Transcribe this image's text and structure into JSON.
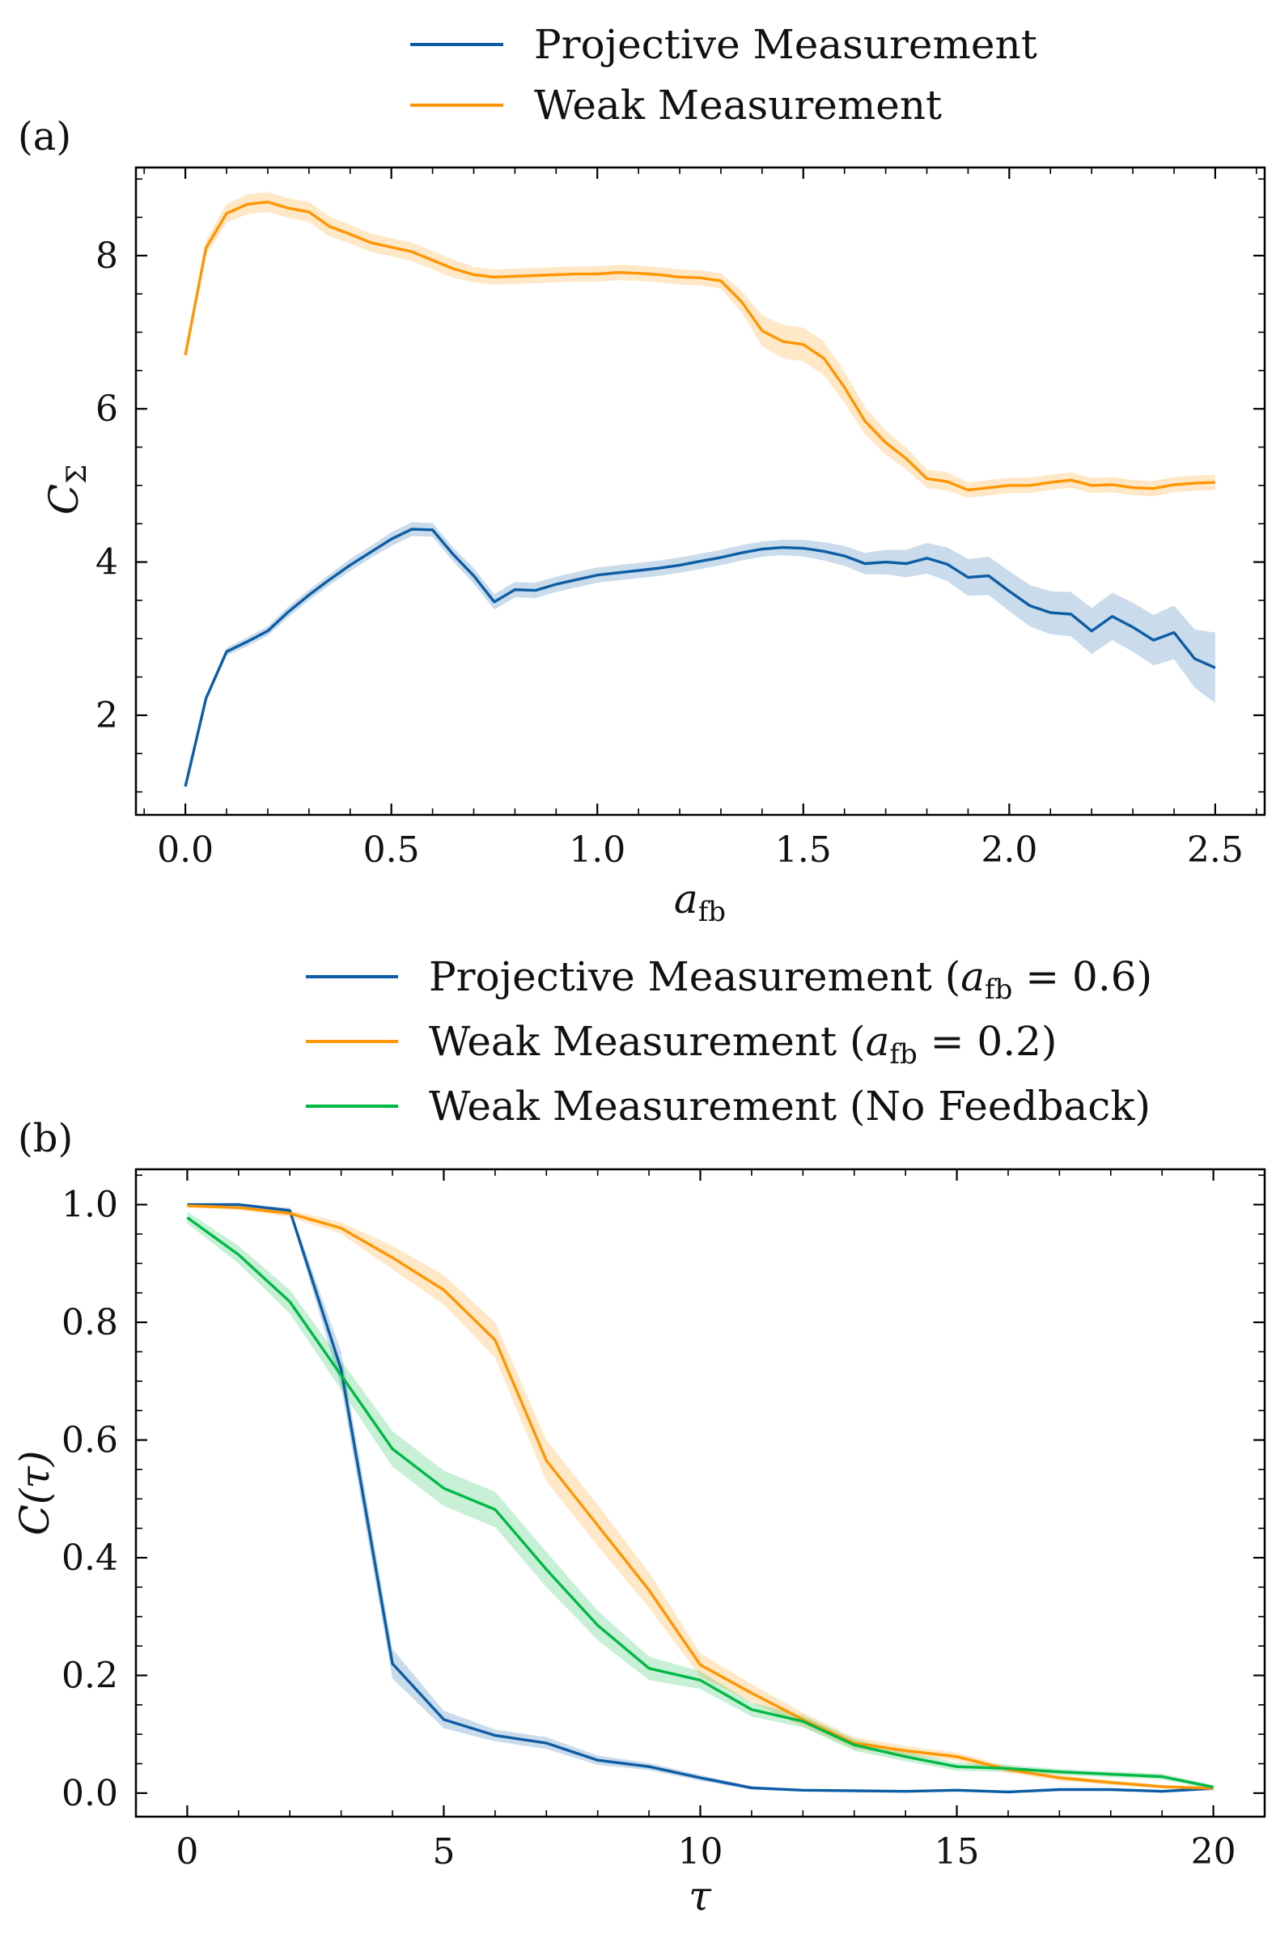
{
  "chart_data": [
    {
      "type": "line",
      "panel_label": "(a)",
      "xlabel": "a_fb",
      "xlabel_main": "a",
      "xlabel_sub": "fb",
      "ylabel": "C_Σ",
      "ylabel_main": "C",
      "ylabel_sub": "Σ",
      "xlim": [
        -0.12,
        2.62
      ],
      "ylim": [
        0.7,
        9.15
      ],
      "xticks": [
        0.0,
        0.5,
        1.0,
        1.5,
        2.0,
        2.5
      ],
      "xtick_labels": [
        "0.0",
        "0.5",
        "1.0",
        "1.5",
        "2.0",
        "2.5"
      ],
      "yticks": [
        2,
        4,
        6,
        8
      ],
      "ytick_labels": [
        "2",
        "4",
        "6",
        "8"
      ],
      "legend_position": "top-center, above plot",
      "series": [
        {
          "name": "Projective Measurement",
          "color": "#0C5DA5",
          "x": [
            0.0,
            0.05,
            0.1,
            0.15,
            0.2,
            0.25,
            0.3,
            0.35,
            0.4,
            0.45,
            0.5,
            0.55,
            0.6,
            0.65,
            0.7,
            0.75,
            0.8,
            0.85,
            0.9,
            0.95,
            1.0,
            1.05,
            1.1,
            1.15,
            1.2,
            1.25,
            1.3,
            1.35,
            1.4,
            1.45,
            1.5,
            1.55,
            1.6,
            1.65,
            1.7,
            1.75,
            1.8,
            1.85,
            1.9,
            1.95,
            2.0,
            2.05,
            2.1,
            2.15,
            2.2,
            2.25,
            2.3,
            2.35,
            2.4,
            2.45,
            2.5
          ],
          "values": [
            1.07,
            2.22,
            2.83,
            2.96,
            3.1,
            3.35,
            3.57,
            3.77,
            3.96,
            4.13,
            4.3,
            4.43,
            4.42,
            4.1,
            3.82,
            3.48,
            3.64,
            3.63,
            3.71,
            3.77,
            3.83,
            3.86,
            3.89,
            3.92,
            3.96,
            4.01,
            4.06,
            4.12,
            4.17,
            4.19,
            4.18,
            4.14,
            4.08,
            3.98,
            4.0,
            3.98,
            4.05,
            3.97,
            3.8,
            3.82,
            3.62,
            3.43,
            3.34,
            3.32,
            3.1,
            3.29,
            3.15,
            2.98,
            3.08,
            2.74,
            2.62
          ],
          "err": [
            0.03,
            0.04,
            0.05,
            0.06,
            0.06,
            0.07,
            0.07,
            0.07,
            0.08,
            0.08,
            0.09,
            0.09,
            0.09,
            0.09,
            0.1,
            0.1,
            0.1,
            0.1,
            0.1,
            0.1,
            0.1,
            0.1,
            0.1,
            0.1,
            0.1,
            0.1,
            0.1,
            0.1,
            0.1,
            0.1,
            0.11,
            0.12,
            0.13,
            0.14,
            0.16,
            0.18,
            0.2,
            0.22,
            0.24,
            0.25,
            0.26,
            0.27,
            0.28,
            0.29,
            0.3,
            0.31,
            0.32,
            0.33,
            0.35,
            0.38,
            0.46
          ]
        },
        {
          "name": "Weak Measurement",
          "color": "#FF9500",
          "x": [
            0.0,
            0.05,
            0.1,
            0.15,
            0.2,
            0.25,
            0.3,
            0.35,
            0.4,
            0.45,
            0.5,
            0.55,
            0.6,
            0.65,
            0.7,
            0.75,
            0.8,
            0.85,
            0.9,
            0.95,
            1.0,
            1.05,
            1.1,
            1.15,
            1.2,
            1.25,
            1.3,
            1.35,
            1.4,
            1.45,
            1.5,
            1.55,
            1.6,
            1.65,
            1.7,
            1.75,
            1.8,
            1.85,
            1.9,
            1.95,
            2.0,
            2.05,
            2.1,
            2.15,
            2.2,
            2.25,
            2.3,
            2.35,
            2.4,
            2.45,
            2.5
          ],
          "values": [
            6.7,
            8.1,
            8.55,
            8.67,
            8.7,
            8.62,
            8.57,
            8.38,
            8.28,
            8.17,
            8.11,
            8.05,
            7.94,
            7.83,
            7.75,
            7.72,
            7.73,
            7.74,
            7.75,
            7.76,
            7.76,
            7.78,
            7.77,
            7.75,
            7.72,
            7.71,
            7.67,
            7.4,
            7.02,
            6.88,
            6.84,
            6.66,
            6.28,
            5.84,
            5.56,
            5.35,
            5.09,
            5.05,
            4.94,
            4.97,
            5.0,
            5.0,
            5.04,
            5.07,
            5.0,
            5.01,
            4.97,
            4.96,
            5.01,
            5.03,
            5.04
          ],
          "err": [
            0.05,
            0.1,
            0.12,
            0.13,
            0.13,
            0.13,
            0.13,
            0.13,
            0.12,
            0.12,
            0.12,
            0.12,
            0.12,
            0.12,
            0.1,
            0.1,
            0.1,
            0.1,
            0.1,
            0.1,
            0.1,
            0.1,
            0.1,
            0.1,
            0.1,
            0.1,
            0.1,
            0.14,
            0.2,
            0.22,
            0.22,
            0.22,
            0.2,
            0.18,
            0.16,
            0.14,
            0.12,
            0.12,
            0.1,
            0.1,
            0.1,
            0.1,
            0.1,
            0.1,
            0.1,
            0.1,
            0.1,
            0.1,
            0.1,
            0.1,
            0.1
          ]
        }
      ]
    },
    {
      "type": "line",
      "panel_label": "(b)",
      "xlabel": "τ",
      "ylabel": "C(τ)",
      "xlim": [
        -1.0,
        21.0
      ],
      "ylim": [
        -0.04,
        1.06
      ],
      "xticks": [
        0,
        5,
        10,
        15,
        20
      ],
      "xtick_labels": [
        "0",
        "5",
        "10",
        "15",
        "20"
      ],
      "yticks": [
        0.0,
        0.2,
        0.4,
        0.6,
        0.8,
        1.0
      ],
      "ytick_labels": [
        "0.0",
        "0.2",
        "0.4",
        "0.6",
        "0.8",
        "1.0"
      ],
      "legend_position": "top-center, above plot",
      "legend_afb_sub": "fb",
      "legend_afb_main": "a",
      "series": [
        {
          "name": "Projective Measurement (a_fb = 0.6)",
          "legend_prefix": "Projective Measurement (",
          "legend_suffix": " = 0.6)",
          "color": "#0C5DA5",
          "x": [
            0,
            1,
            2,
            3,
            4,
            5,
            6,
            7,
            8,
            9,
            10,
            11,
            12,
            13,
            14,
            15,
            16,
            17,
            18,
            19,
            20
          ],
          "values": [
            1.0,
            1.0,
            0.99,
            0.72,
            0.22,
            0.125,
            0.098,
            0.085,
            0.056,
            0.045,
            0.026,
            0.009,
            0.005,
            0.004,
            0.003,
            0.005,
            0.002,
            0.006,
            0.006,
            0.003,
            0.008
          ],
          "err": [
            0.0,
            0.0,
            0.005,
            0.03,
            0.025,
            0.015,
            0.01,
            0.01,
            0.008,
            0.006,
            0.005,
            0.003,
            0.002,
            0.002,
            0.002,
            0.002,
            0.002,
            0.002,
            0.002,
            0.002,
            0.003
          ]
        },
        {
          "name": "Weak Measurement (a_fb = 0.2)",
          "legend_prefix": "Weak Measurement (",
          "legend_suffix": " = 0.2)",
          "color": "#FF9500",
          "x": [
            0,
            1,
            2,
            3,
            4,
            5,
            6,
            7,
            8,
            9,
            10,
            11,
            12,
            13,
            14,
            15,
            16,
            17,
            18,
            19,
            20
          ],
          "values": [
            0.998,
            0.995,
            0.985,
            0.96,
            0.91,
            0.855,
            0.77,
            0.565,
            0.455,
            0.345,
            0.218,
            0.17,
            0.125,
            0.085,
            0.072,
            0.062,
            0.04,
            0.026,
            0.018,
            0.011,
            0.008
          ],
          "err": [
            0.003,
            0.004,
            0.006,
            0.01,
            0.02,
            0.025,
            0.03,
            0.035,
            0.035,
            0.03,
            0.02,
            0.015,
            0.012,
            0.01,
            0.008,
            0.007,
            0.006,
            0.005,
            0.004,
            0.003,
            0.003
          ]
        },
        {
          "name": "Weak Measurement (No Feedback)",
          "legend_label": "Weak Measurement (No Feedback)",
          "color": "#00B945",
          "x": [
            0,
            1,
            2,
            3,
            4,
            5,
            6,
            7,
            8,
            9,
            10,
            11,
            12,
            13,
            14,
            15,
            16,
            17,
            18,
            19,
            20
          ],
          "values": [
            0.978,
            0.915,
            0.835,
            0.71,
            0.585,
            0.518,
            0.482,
            0.38,
            0.285,
            0.212,
            0.192,
            0.142,
            0.122,
            0.082,
            0.062,
            0.045,
            0.042,
            0.036,
            0.032,
            0.028,
            0.01
          ],
          "err": [
            0.01,
            0.015,
            0.02,
            0.025,
            0.03,
            0.03,
            0.03,
            0.03,
            0.025,
            0.02,
            0.015,
            0.012,
            0.01,
            0.01,
            0.008,
            0.007,
            0.006,
            0.005,
            0.005,
            0.005,
            0.004
          ]
        }
      ]
    }
  ]
}
